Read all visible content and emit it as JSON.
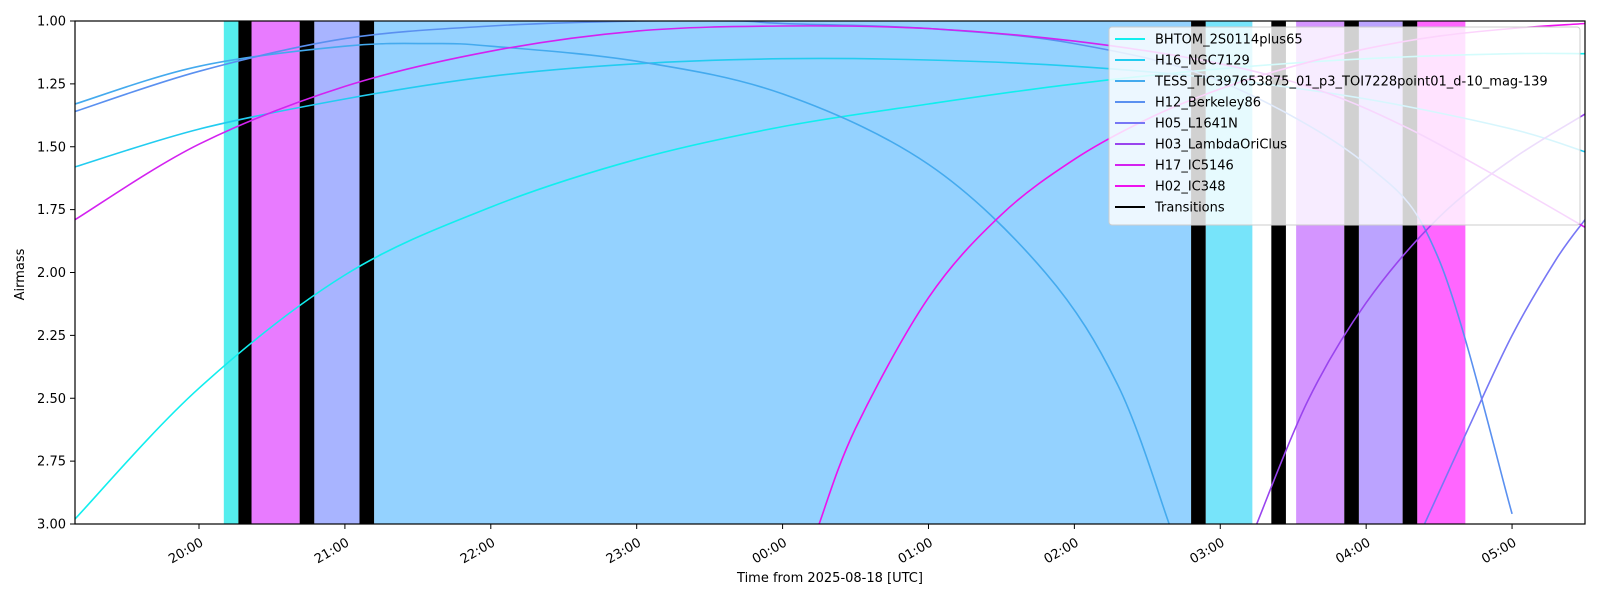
{
  "chart_data": {
    "type": "line",
    "xlabel": "Time from 2025-08-18 [UTC]",
    "ylabel": "Airmass",
    "x_range_hours": [
      19.15,
      29.5
    ],
    "ylim": [
      1.0,
      3.0
    ],
    "y_inverted": true,
    "x_ticks": [
      {
        "t": 20,
        "label": "20:00"
      },
      {
        "t": 21,
        "label": "21:00"
      },
      {
        "t": 22,
        "label": "22:00"
      },
      {
        "t": 23,
        "label": "23:00"
      },
      {
        "t": 24,
        "label": "00:00"
      },
      {
        "t": 25,
        "label": "01:00"
      },
      {
        "t": 26,
        "label": "02:00"
      },
      {
        "t": 27,
        "label": "03:00"
      },
      {
        "t": 28,
        "label": "04:00"
      },
      {
        "t": 29,
        "label": "05:00"
      }
    ],
    "y_ticks": [
      1.0,
      1.25,
      1.5,
      1.75,
      2.0,
      2.25,
      2.5,
      2.75,
      3.0
    ],
    "y_tick_labels": [
      "1.00",
      "1.25",
      "1.50",
      "1.75",
      "2.00",
      "2.25",
      "2.50",
      "2.75",
      "3.00"
    ],
    "legend_position": "top-right",
    "series": [
      {
        "name": "BHTOM_2S0114plus65",
        "color": "#11eeee",
        "t": [
          19.15,
          20,
          21,
          22,
          23,
          24,
          25,
          26,
          27,
          28,
          29,
          29.5
        ],
        "y": [
          2.98,
          2.46,
          2.01,
          1.74,
          1.55,
          1.42,
          1.33,
          1.25,
          1.19,
          1.15,
          1.13,
          1.13
        ]
      },
      {
        "name": "H16_NGC7129",
        "color": "#22ccf0",
        "t": [
          19.15,
          20,
          21,
          22,
          23,
          24,
          25,
          26,
          27,
          28,
          29,
          29.5
        ],
        "y": [
          1.58,
          1.43,
          1.31,
          1.22,
          1.17,
          1.15,
          1.155,
          1.18,
          1.23,
          1.31,
          1.43,
          1.52
        ]
      },
      {
        "name": "TESS_TIC397653875_01_p3_TOI7228point01_d-10_mag-139",
        "color": "#44aaee",
        "t": [
          19.15,
          20,
          21,
          21.6,
          22,
          23,
          24,
          25,
          25.8,
          26.3,
          26.65
        ],
        "y": [
          1.33,
          1.18,
          1.1,
          1.09,
          1.1,
          1.16,
          1.29,
          1.57,
          2.0,
          2.45,
          3.0
        ]
      },
      {
        "name": "H12_Berkeley86",
        "color": "#5a90f0",
        "t": [
          19.15,
          20,
          21,
          22,
          23,
          23.7,
          24,
          25,
          26,
          27,
          28,
          28.5,
          29
        ],
        "y": [
          1.36,
          1.2,
          1.07,
          1.02,
          1.0,
          1.0,
          1.01,
          1.03,
          1.09,
          1.24,
          1.57,
          1.95,
          2.96
        ]
      },
      {
        "name": "H05_L1641N",
        "color": "#7777f5",
        "t": [
          28.4,
          28.7,
          29,
          29.3,
          29.5
        ],
        "y": [
          3.0,
          2.62,
          2.25,
          1.95,
          1.79
        ]
      },
      {
        "name": "H03_LambdaOriClus",
        "color": "#9944ee",
        "t": [
          27.25,
          27.6,
          28,
          28.5,
          29,
          29.5
        ],
        "y": [
          3.0,
          2.51,
          2.12,
          1.78,
          1.55,
          1.37
        ]
      },
      {
        "name": "H17_IC5146",
        "color": "#d322f0",
        "t": [
          19.15,
          20,
          21,
          22,
          23,
          24,
          25,
          26,
          27,
          27.7,
          28.3,
          28.9,
          29.5
        ],
        "y": [
          1.79,
          1.49,
          1.26,
          1.12,
          1.04,
          1.02,
          1.03,
          1.08,
          1.17,
          1.28,
          1.43,
          1.62,
          1.82
        ]
      },
      {
        "name": "H02_IC348",
        "color": "#ee11ee",
        "t": [
          24.25,
          24.5,
          25,
          25.5,
          26,
          26.5,
          27,
          27.5,
          28,
          28.5,
          29,
          29.5
        ],
        "y": [
          3.0,
          2.62,
          2.1,
          1.77,
          1.55,
          1.39,
          1.27,
          1.18,
          1.11,
          1.06,
          1.03,
          1.01
        ]
      }
    ],
    "transitions": {
      "name": "Transitions",
      "color": "#000000",
      "intervals": [
        [
          20.27,
          20.36
        ],
        [
          20.69,
          20.79
        ],
        [
          21.1,
          21.2
        ],
        [
          26.8,
          26.9
        ],
        [
          27.35,
          27.45
        ],
        [
          27.85,
          27.95
        ],
        [
          28.25,
          28.35
        ]
      ]
    },
    "scheduled_blocks": [
      {
        "series": "BHTOM_2S0114plus65",
        "color": "#55eeee",
        "start": 20.17,
        "end": 20.27
      },
      {
        "series": "H02_IC348",
        "color": "#e87bff",
        "start": 20.36,
        "end": 20.69
      },
      {
        "series": "H05_L1641N",
        "color": "#a8b4ff",
        "start": 20.79,
        "end": 21.1
      },
      {
        "series": "TESS_TIC397653875_01_p3_TOI7228point01_d-10_mag-139",
        "color": "#94d2ff",
        "start": 21.2,
        "end": 26.8
      },
      {
        "series": "H16_NGC7129",
        "color": "#77e4fa",
        "start": 26.9,
        "end": 27.22
      },
      {
        "series": "H03_LambdaOriClus",
        "color": "#d495ff",
        "start": 27.52,
        "end": 27.85
      },
      {
        "series": "H05_L1641N",
        "color": "#bba3ff",
        "start": 27.95,
        "end": 28.25
      },
      {
        "series": "H02_IC348",
        "color": "#ff66ff",
        "start": 28.35,
        "end": 28.68
      }
    ]
  }
}
